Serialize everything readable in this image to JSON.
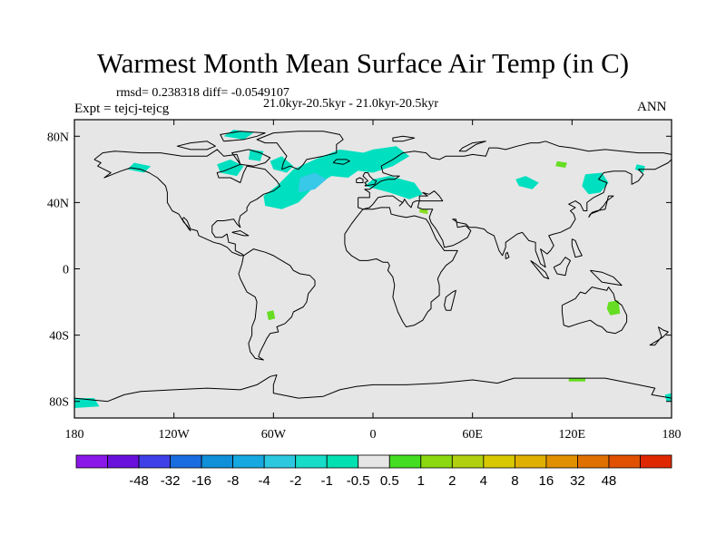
{
  "title": "Warmest Month Mean Surface Air Temp (in C)",
  "stats_text": "rmsd= 0.238318 diff= -0.0549107",
  "periods_text": "21.0kyr-20.5kyr - 21.0kyr-20.5kyr",
  "experiment_text": "Expt = tejcj-tejcg",
  "season": "ANN",
  "map": {
    "projection": "cylindrical-equidistant",
    "lon_range": [
      -180,
      180
    ],
    "lat_range": [
      -90,
      90
    ],
    "background_color": "#e6e6e6",
    "coastline_color": "#000000",
    "x_ticks": [
      {
        "lon": -180,
        "label": "180"
      },
      {
        "lon": -120,
        "label": "120W"
      },
      {
        "lon": -60,
        "label": "60W"
      },
      {
        "lon": 0,
        "label": "0"
      },
      {
        "lon": 60,
        "label": "60E"
      },
      {
        "lon": 120,
        "label": "120E"
      },
      {
        "lon": 180,
        "label": "180"
      }
    ],
    "y_ticks": [
      {
        "lat": 80,
        "label": "80N"
      },
      {
        "lat": 40,
        "label": "40N"
      },
      {
        "lat": 0,
        "label": "0"
      },
      {
        "lat": -40,
        "label": "40S"
      },
      {
        "lat": -80,
        "label": "80S"
      }
    ]
  },
  "anomaly_patches": [
    {
      "region": "North Atlantic",
      "color": "#00e0c0",
      "outline": [
        [
          -65,
          38
        ],
        [
          -55,
          36
        ],
        [
          -45,
          40
        ],
        [
          -35,
          50
        ],
        [
          -25,
          56
        ],
        [
          -15,
          55
        ],
        [
          -5,
          62
        ],
        [
          5,
          63
        ],
        [
          -5,
          70
        ],
        [
          -20,
          72
        ],
        [
          -35,
          66
        ],
        [
          -48,
          60
        ],
        [
          -58,
          50
        ],
        [
          -66,
          44
        ]
      ]
    },
    {
      "region": "Nordic Seas",
      "color": "#00e0c0",
      "outline": [
        [
          -15,
          60
        ],
        [
          0,
          58
        ],
        [
          12,
          62
        ],
        [
          22,
          68
        ],
        [
          14,
          74
        ],
        [
          0,
          72
        ],
        [
          -12,
          68
        ]
      ]
    },
    {
      "region": "North Atlantic core",
      "color": "#38c8e8",
      "outline": [
        [
          -45,
          46
        ],
        [
          -35,
          48
        ],
        [
          -28,
          54
        ],
        [
          -35,
          58
        ],
        [
          -44,
          55
        ]
      ]
    },
    {
      "region": "Labrador Sea",
      "color": "#00e0c0",
      "outline": [
        [
          -60,
          60
        ],
        [
          -52,
          58
        ],
        [
          -48,
          62
        ],
        [
          -55,
          68
        ],
        [
          -62,
          65
        ]
      ]
    },
    {
      "region": "Hudson Bay",
      "color": "#00e0c0",
      "outline": [
        [
          -92,
          58
        ],
        [
          -82,
          56
        ],
        [
          -78,
          62
        ],
        [
          -86,
          66
        ],
        [
          -94,
          63
        ]
      ]
    },
    {
      "region": "Baffin",
      "color": "#00e0c0",
      "outline": [
        [
          -75,
          66
        ],
        [
          -68,
          65
        ],
        [
          -66,
          71
        ],
        [
          -74,
          72
        ]
      ]
    },
    {
      "region": "Europe",
      "color": "#00e0c0",
      "outline": [
        [
          -5,
          50
        ],
        [
          10,
          46
        ],
        [
          22,
          42
        ],
        [
          30,
          45
        ],
        [
          25,
          52
        ],
        [
          10,
          56
        ],
        [
          0,
          54
        ]
      ]
    },
    {
      "region": "Arctic Canada",
      "color": "#00e0c0",
      "outline": [
        [
          -90,
          80
        ],
        [
          -78,
          78
        ],
        [
          -72,
          82
        ],
        [
          -84,
          84
        ]
      ]
    },
    {
      "region": "Alaska",
      "color": "#00e0c0",
      "outline": [
        [
          -148,
          60
        ],
        [
          -138,
          58
        ],
        [
          -134,
          62
        ],
        [
          -144,
          64
        ]
      ]
    },
    {
      "region": "NE Asia",
      "color": "#00e0c0",
      "outline": [
        [
          130,
          45
        ],
        [
          137,
          46
        ],
        [
          142,
          52
        ],
        [
          138,
          58
        ],
        [
          128,
          57
        ],
        [
          126,
          50
        ]
      ]
    },
    {
      "region": "Central Asia",
      "color": "#00e0c0",
      "outline": [
        [
          88,
          50
        ],
        [
          96,
          48
        ],
        [
          100,
          52
        ],
        [
          92,
          56
        ],
        [
          86,
          54
        ]
      ]
    },
    {
      "region": "Kamchatka",
      "color": "#00e0c0",
      "outline": [
        [
          158,
          60
        ],
        [
          163,
          58
        ],
        [
          164,
          62
        ],
        [
          159,
          63
        ]
      ]
    },
    {
      "region": "Antarctic Ross",
      "color": "#00e0c0",
      "outline": [
        [
          -180,
          -78
        ],
        [
          -168,
          -78
        ],
        [
          -165,
          -83
        ],
        [
          -180,
          -84
        ]
      ]
    },
    {
      "region": "Antarctic east",
      "color": "#00e0c0",
      "outline": [
        [
          176,
          -76
        ],
        [
          180,
          -75
        ],
        [
          180,
          -80
        ],
        [
          177,
          -80
        ]
      ]
    },
    {
      "region": "Mongolia",
      "color": "#66dd22",
      "outline": [
        [
          110,
          62
        ],
        [
          116,
          61
        ],
        [
          117,
          64
        ],
        [
          111,
          65
        ]
      ]
    },
    {
      "region": "Middle East",
      "color": "#88dd22",
      "outline": [
        [
          28,
          34
        ],
        [
          33,
          33
        ],
        [
          33,
          36
        ],
        [
          28,
          36
        ]
      ]
    },
    {
      "region": "Australia",
      "color": "#66dd22",
      "outline": [
        [
          142,
          -20
        ],
        [
          148,
          -19
        ],
        [
          149,
          -27
        ],
        [
          143,
          -28
        ],
        [
          141,
          -24
        ]
      ]
    },
    {
      "region": "South America",
      "color": "#66dd22",
      "outline": [
        [
          -64,
          -26
        ],
        [
          -60,
          -25
        ],
        [
          -59,
          -30
        ],
        [
          -63,
          -31
        ]
      ]
    },
    {
      "region": "Antarctic coast",
      "color": "#66dd22",
      "outline": [
        [
          118,
          -66
        ],
        [
          128,
          -66
        ],
        [
          128,
          -68
        ],
        [
          118,
          -68
        ]
      ]
    }
  ],
  "colorbar": {
    "colors": [
      "#8a18e8",
      "#6a10dd",
      "#4040e8",
      "#1a6de0",
      "#1090d8",
      "#16a8e0",
      "#2cc8e0",
      "#16dcc8",
      "#00e0b0",
      "#e6e6e6",
      "#44dd22",
      "#8cd810",
      "#b0d010",
      "#d8c800",
      "#e0b000",
      "#e09000",
      "#e07000",
      "#e05000",
      "#e02800"
    ],
    "labels": [
      "-48",
      "-32",
      "-16",
      "-8",
      "-4",
      "-2",
      "-1",
      "-0.5",
      "0.5",
      "1",
      "2",
      "4",
      "8",
      "16",
      "32",
      "48"
    ]
  }
}
